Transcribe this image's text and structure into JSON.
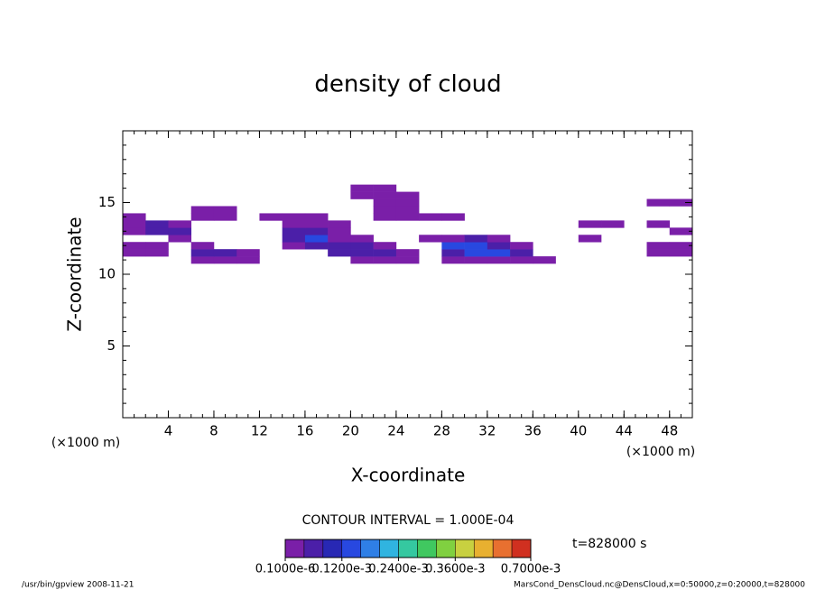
{
  "chart_data": {
    "type": "contour",
    "title": "density of cloud",
    "xlabel": "X-coordinate",
    "ylabel": "Z-coordinate",
    "x_unit": "(×1000 m)",
    "y_unit": "(×1000 m)",
    "xlim": [
      0,
      50
    ],
    "ylim": [
      0,
      20
    ],
    "xticks": [
      4,
      8,
      12,
      16,
      20,
      24,
      28,
      32,
      36,
      40,
      44,
      48
    ],
    "yticks": [
      5,
      10,
      15
    ],
    "xminor": 1,
    "yminor": 1,
    "x": [
      1,
      3,
      5,
      7,
      9,
      11,
      13,
      15,
      17,
      19,
      21,
      23,
      25,
      27,
      29,
      31,
      33,
      35,
      37,
      39,
      41,
      43,
      45,
      47,
      49
    ],
    "z": [
      11,
      11.5,
      12,
      12.5,
      13,
      13.5,
      14,
      14.5,
      15,
      15.5,
      16
    ],
    "values": [
      [
        null,
        null,
        null,
        3e-05,
        3e-05,
        3e-05,
        null,
        null,
        null,
        null,
        3e-05,
        3e-05,
        3e-05,
        null,
        3e-05,
        3e-05,
        3e-05,
        3e-05,
        3e-05,
        null,
        null,
        null,
        null,
        null,
        null
      ],
      [
        3e-05,
        3e-05,
        null,
        6e-05,
        6e-05,
        3e-05,
        null,
        null,
        null,
        6e-05,
        6e-05,
        6e-05,
        3e-05,
        null,
        6e-05,
        0.00014,
        0.00014,
        6e-05,
        null,
        null,
        null,
        null,
        null,
        3e-05,
        3e-05
      ],
      [
        3e-05,
        3e-05,
        null,
        3e-05,
        null,
        null,
        null,
        3e-05,
        6e-05,
        6e-05,
        6e-05,
        3e-05,
        null,
        null,
        0.00014,
        0.00014,
        6e-05,
        3e-05,
        null,
        null,
        null,
        null,
        null,
        3e-05,
        3e-05
      ],
      [
        null,
        null,
        3e-05,
        null,
        null,
        null,
        null,
        6e-05,
        0.00014,
        3e-05,
        3e-05,
        null,
        null,
        3e-05,
        3e-05,
        6e-05,
        3e-05,
        null,
        null,
        null,
        3e-05,
        null,
        null,
        null,
        null
      ],
      [
        3e-05,
        6e-05,
        6e-05,
        null,
        null,
        null,
        null,
        6e-05,
        6e-05,
        3e-05,
        null,
        null,
        null,
        null,
        null,
        null,
        null,
        null,
        null,
        null,
        null,
        null,
        null,
        null,
        3e-05
      ],
      [
        3e-05,
        6e-05,
        3e-05,
        null,
        null,
        null,
        null,
        3e-05,
        3e-05,
        3e-05,
        null,
        null,
        null,
        null,
        null,
        null,
        null,
        null,
        null,
        null,
        3e-05,
        3e-05,
        null,
        3e-05,
        null
      ],
      [
        3e-05,
        null,
        null,
        3e-05,
        3e-05,
        null,
        3e-05,
        3e-05,
        3e-05,
        null,
        null,
        3e-05,
        3e-05,
        3e-05,
        3e-05,
        null,
        null,
        null,
        null,
        null,
        null,
        null,
        null,
        null,
        null
      ],
      [
        null,
        null,
        null,
        3e-05,
        3e-05,
        null,
        null,
        null,
        null,
        null,
        null,
        3e-05,
        3e-05,
        null,
        null,
        null,
        null,
        null,
        null,
        null,
        null,
        null,
        null,
        null,
        null
      ],
      [
        null,
        null,
        null,
        null,
        null,
        null,
        null,
        null,
        null,
        null,
        null,
        3e-05,
        3e-05,
        null,
        null,
        null,
        null,
        null,
        null,
        null,
        null,
        null,
        null,
        3e-05,
        3e-05
      ],
      [
        null,
        null,
        null,
        null,
        null,
        null,
        null,
        null,
        null,
        null,
        3e-05,
        3e-05,
        3e-05,
        null,
        null,
        null,
        null,
        null,
        null,
        null,
        null,
        null,
        null,
        null,
        null
      ],
      [
        null,
        null,
        null,
        null,
        null,
        null,
        null,
        null,
        null,
        null,
        3e-05,
        3e-05,
        null,
        null,
        null,
        null,
        null,
        null,
        null,
        null,
        null,
        null,
        null,
        null,
        null
      ]
    ],
    "contour_interval": "CONTOUR INTERVAL = 1.000E-04",
    "time_label": "t=828000 s",
    "colorbar": {
      "levels": [
        1e-07,
        4e-05,
        8e-05,
        0.00012,
        0.00016,
        0.0002,
        0.00024,
        0.00028,
        0.00032,
        0.00036,
        0.0004,
        0.0005,
        0.0006,
        0.0007
      ],
      "colors": [
        "#7a1fa8",
        "#4b1fa8",
        "#2828b4",
        "#2848e0",
        "#2f7fe6",
        "#30b4e0",
        "#35c8a0",
        "#40c860",
        "#80d040",
        "#c8d040",
        "#e8b030",
        "#e87030",
        "#d03020"
      ],
      "ticks": [
        {
          "value": 1e-07,
          "label": "0.1000e-6"
        },
        {
          "value": 0.00012,
          "label": "0.1200e-3"
        },
        {
          "value": 0.00024,
          "label": "0.2400e-3"
        },
        {
          "value": 0.00036,
          "label": "0.3600e-3"
        },
        {
          "value": 0.0007,
          "label": "0.7000e-3"
        }
      ]
    },
    "footer_left": "/usr/bin/gpview  2008-11-21",
    "footer_right": "MarsCond_DensCloud.nc@DensCloud,x=0:50000,z=0:20000,t=828000"
  }
}
